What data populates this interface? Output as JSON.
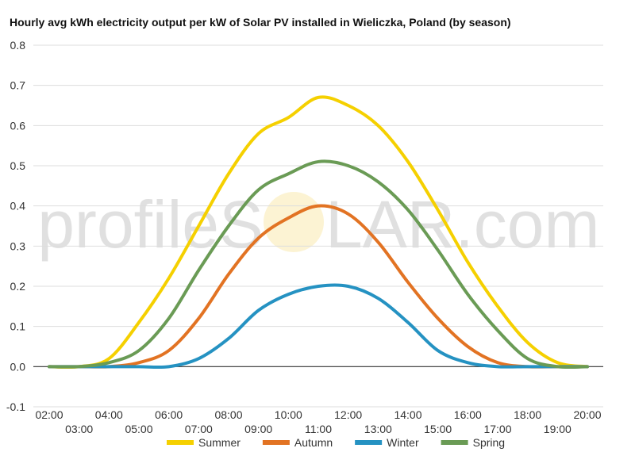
{
  "chart_data": {
    "type": "line",
    "title": "Hourly avg kWh electricity output per kW of Solar PV installed in Wieliczka, Poland (by season)",
    "xlabel": "",
    "ylabel": "",
    "x": [
      "02:00",
      "03:00",
      "04:00",
      "05:00",
      "06:00",
      "07:00",
      "08:00",
      "09:00",
      "10:00",
      "11:00",
      "12:00",
      "13:00",
      "14:00",
      "15:00",
      "16:00",
      "17:00",
      "18:00",
      "19:00",
      "20:00"
    ],
    "ylim": [
      -0.1,
      0.8
    ],
    "yticks": [
      "-0.1",
      "0.0",
      "0.1",
      "0.2",
      "0.3",
      "0.4",
      "0.5",
      "0.6",
      "0.7",
      "0.8"
    ],
    "grid": true,
    "legend": "bottom",
    "series": [
      {
        "name": "Summer",
        "color": "#f5d000",
        "values": [
          0,
          0,
          0.02,
          0.11,
          0.22,
          0.35,
          0.48,
          0.58,
          0.62,
          0.67,
          0.65,
          0.6,
          0.51,
          0.39,
          0.26,
          0.15,
          0.06,
          0.01,
          0
        ]
      },
      {
        "name": "Autumn",
        "color": "#e27323",
        "values": [
          0,
          0,
          0,
          0.01,
          0.04,
          0.12,
          0.23,
          0.32,
          0.37,
          0.4,
          0.38,
          0.31,
          0.21,
          0.12,
          0.05,
          0.01,
          0,
          0,
          0
        ]
      },
      {
        "name": "Winter",
        "color": "#2592c2",
        "values": [
          0,
          0,
          0,
          0,
          0,
          0.02,
          0.07,
          0.14,
          0.18,
          0.2,
          0.2,
          0.17,
          0.11,
          0.04,
          0.01,
          0,
          0,
          0,
          0
        ]
      },
      {
        "name": "Spring",
        "color": "#6a9b55",
        "values": [
          0,
          0,
          0.01,
          0.04,
          0.12,
          0.24,
          0.35,
          0.44,
          0.48,
          0.51,
          0.5,
          0.46,
          0.39,
          0.29,
          0.18,
          0.09,
          0.02,
          0,
          0
        ]
      }
    ]
  },
  "watermark": {
    "text_left": "profileS",
    "text_right": "LAR.com"
  }
}
